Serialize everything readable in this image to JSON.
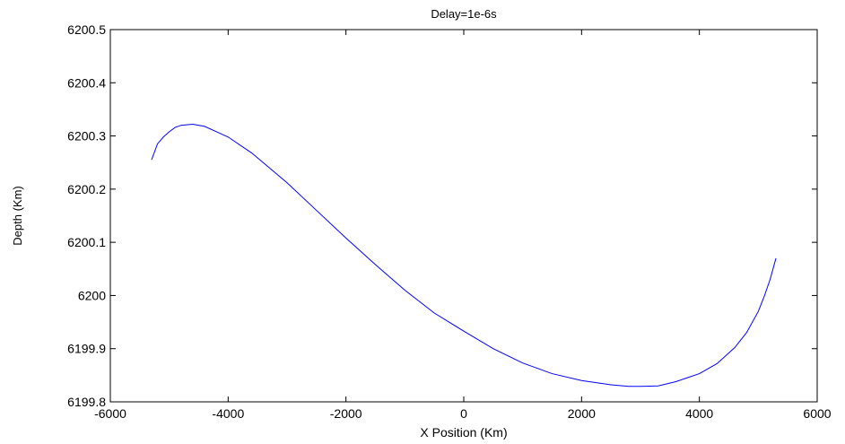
{
  "chart_data": {
    "type": "line",
    "title": "Delay=1e-6s",
    "xlabel": "X Position (Km)",
    "ylabel": "Depth (Km)",
    "xlim": [
      -6000,
      6000
    ],
    "ylim": [
      6199.8,
      6200.5
    ],
    "xticks": [
      "-6000",
      "-4000",
      "-2000",
      "0",
      "2000",
      "4000",
      "6000"
    ],
    "yticks": [
      "6199.8",
      "6199.9",
      "6200",
      "6200.1",
      "6200.2",
      "6200.3",
      "6200.4",
      "6200.5"
    ],
    "grid": false,
    "line_color": "#0000ff",
    "series": [
      {
        "x": [
          -5300,
          -5200,
          -5100,
          -5000,
          -4900,
          -4800,
          -4600,
          -4400,
          -4200,
          -4000,
          -3600,
          -3000,
          -2500,
          -2000,
          -1500,
          -1000,
          -500,
          0,
          500,
          1000,
          1500,
          2000,
          2500,
          2800,
          3000,
          3300,
          3600,
          4000,
          4300,
          4600,
          4800,
          5000,
          5100,
          5200,
          5300
        ],
        "y": [
          6200.255,
          6200.285,
          6200.298,
          6200.308,
          6200.316,
          6200.32,
          6200.322,
          6200.318,
          6200.308,
          6200.298,
          6200.268,
          6200.212,
          6200.16,
          6200.108,
          6200.058,
          6200.01,
          6199.967,
          6199.933,
          6199.9,
          6199.873,
          6199.853,
          6199.84,
          6199.832,
          6199.829,
          6199.829,
          6199.83,
          6199.838,
          6199.853,
          6199.872,
          6199.902,
          6199.93,
          6199.97,
          6199.998,
          6200.03,
          6200.07
        ]
      }
    ]
  }
}
